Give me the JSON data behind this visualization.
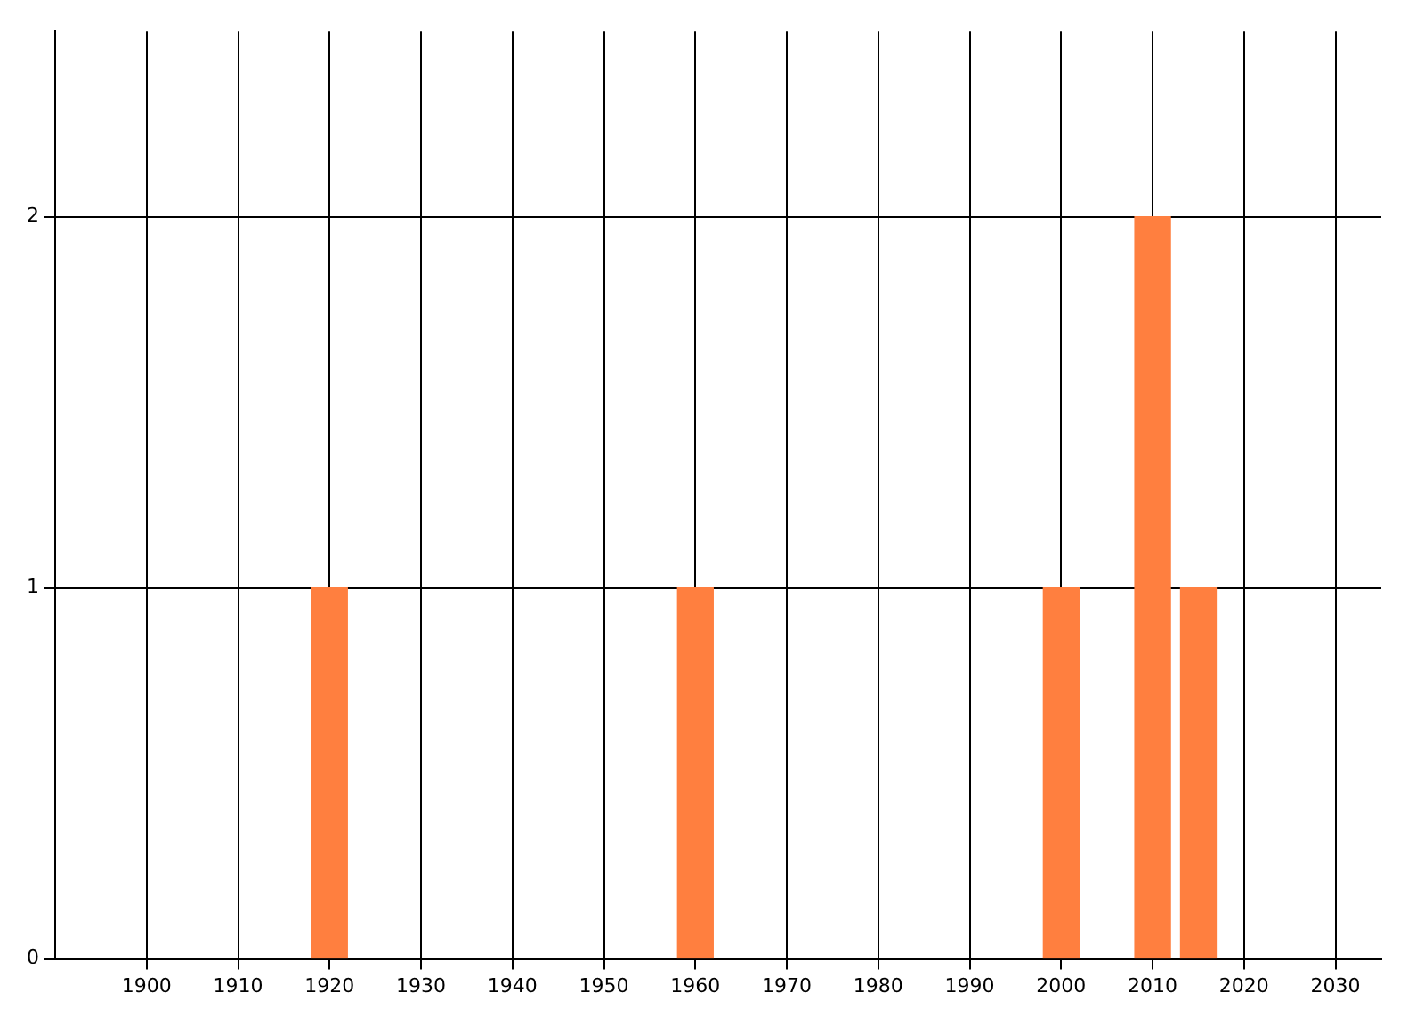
{
  "chart_data": {
    "type": "bar",
    "x": [
      1920,
      1960,
      2000,
      2010,
      2015
    ],
    "values": [
      1,
      1,
      1,
      2,
      1
    ],
    "color": "#ff7f3f",
    "xlim": [
      1890,
      2035
    ],
    "xticks": [
      1900,
      1910,
      1920,
      1930,
      1940,
      1950,
      1960,
      1970,
      1980,
      1990,
      2000,
      2010,
      2020,
      2030
    ],
    "ylim": [
      0,
      2.5
    ],
    "yticks": [
      0,
      1,
      2
    ],
    "grid": true
  }
}
